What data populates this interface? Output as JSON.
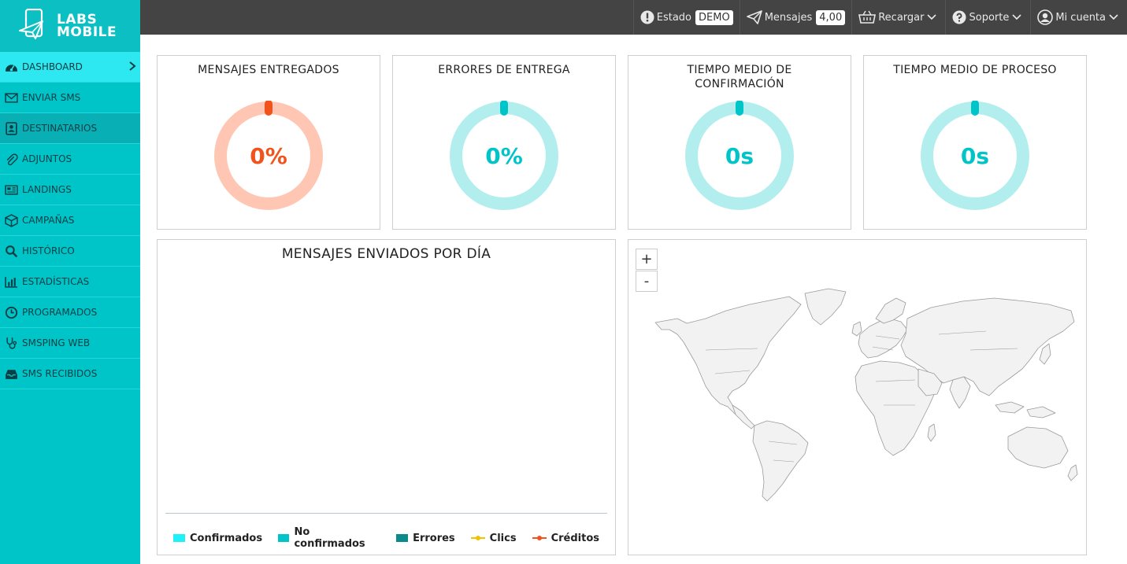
{
  "brand": {
    "line1": "LABS",
    "line2": "MOBILE"
  },
  "sidebar": {
    "items": [
      {
        "label": "DASHBOARD",
        "icon": "dashboard-icon"
      },
      {
        "label": "ENVIAR SMS",
        "icon": "envelope-icon"
      },
      {
        "label": "DESTINATARIOS",
        "icon": "contacts-icon"
      },
      {
        "label": "ADJUNTOS",
        "icon": "paperclip-icon"
      },
      {
        "label": "LANDINGS",
        "icon": "newspaper-icon"
      },
      {
        "label": "CAMPAÑAS",
        "icon": "box-icon"
      },
      {
        "label": "HISTÓRICO",
        "icon": "search-icon"
      },
      {
        "label": "ESTADÍSTICAS",
        "icon": "bar-chart-icon"
      },
      {
        "label": "PROGRAMADOS",
        "icon": "clock-icon"
      },
      {
        "label": "SMSPING WEB",
        "icon": "stethoscope-icon"
      },
      {
        "label": "SMS RECIBIDOS",
        "icon": "inbox-icon"
      }
    ]
  },
  "topbar": {
    "estado_label": "Estado",
    "estado_badge": "DEMO",
    "mensajes_label": "Mensajes",
    "mensajes_badge": "4,00",
    "recargar_label": "Recargar",
    "soporte_label": "Soporte",
    "cuenta_label": "Mi cuenta"
  },
  "kpis": [
    {
      "title": "MENSAJES ENTREGADOS",
      "value": "0%",
      "color": "#f0531c",
      "ring": "#ffc6b3",
      "fraction": 0
    },
    {
      "title": "ERRORES DE ENTREGA",
      "value": "0%",
      "color": "#00c5c8",
      "ring": "#b3eeee",
      "fraction": 0
    },
    {
      "title": "TIEMPO MEDIO DE CONFIRMACIÓN",
      "value": "0s",
      "color": "#00c5c8",
      "ring": "#b3eeee",
      "fraction": 0
    },
    {
      "title": "TIEMPO MEDIO DE PROCESO",
      "value": "0s",
      "color": "#00c5c8",
      "ring": "#b3eeee",
      "fraction": 0
    }
  ],
  "chart": {
    "title": "MENSAJES ENVIADOS POR DÍA",
    "legend": [
      {
        "label": "Confirmados",
        "color": "#1ef2f8",
        "kind": "bar"
      },
      {
        "label": "No confirmados",
        "color": "#00c5c8",
        "kind": "bar"
      },
      {
        "label": "Errores",
        "color": "#0b8a8c",
        "kind": "bar"
      },
      {
        "label": "Clics",
        "color": "#f2c200",
        "kind": "line"
      },
      {
        "label": "Créditos",
        "color": "#f0531c",
        "kind": "line"
      }
    ]
  },
  "map": {
    "zoom_in": "+",
    "zoom_out": "-"
  }
}
